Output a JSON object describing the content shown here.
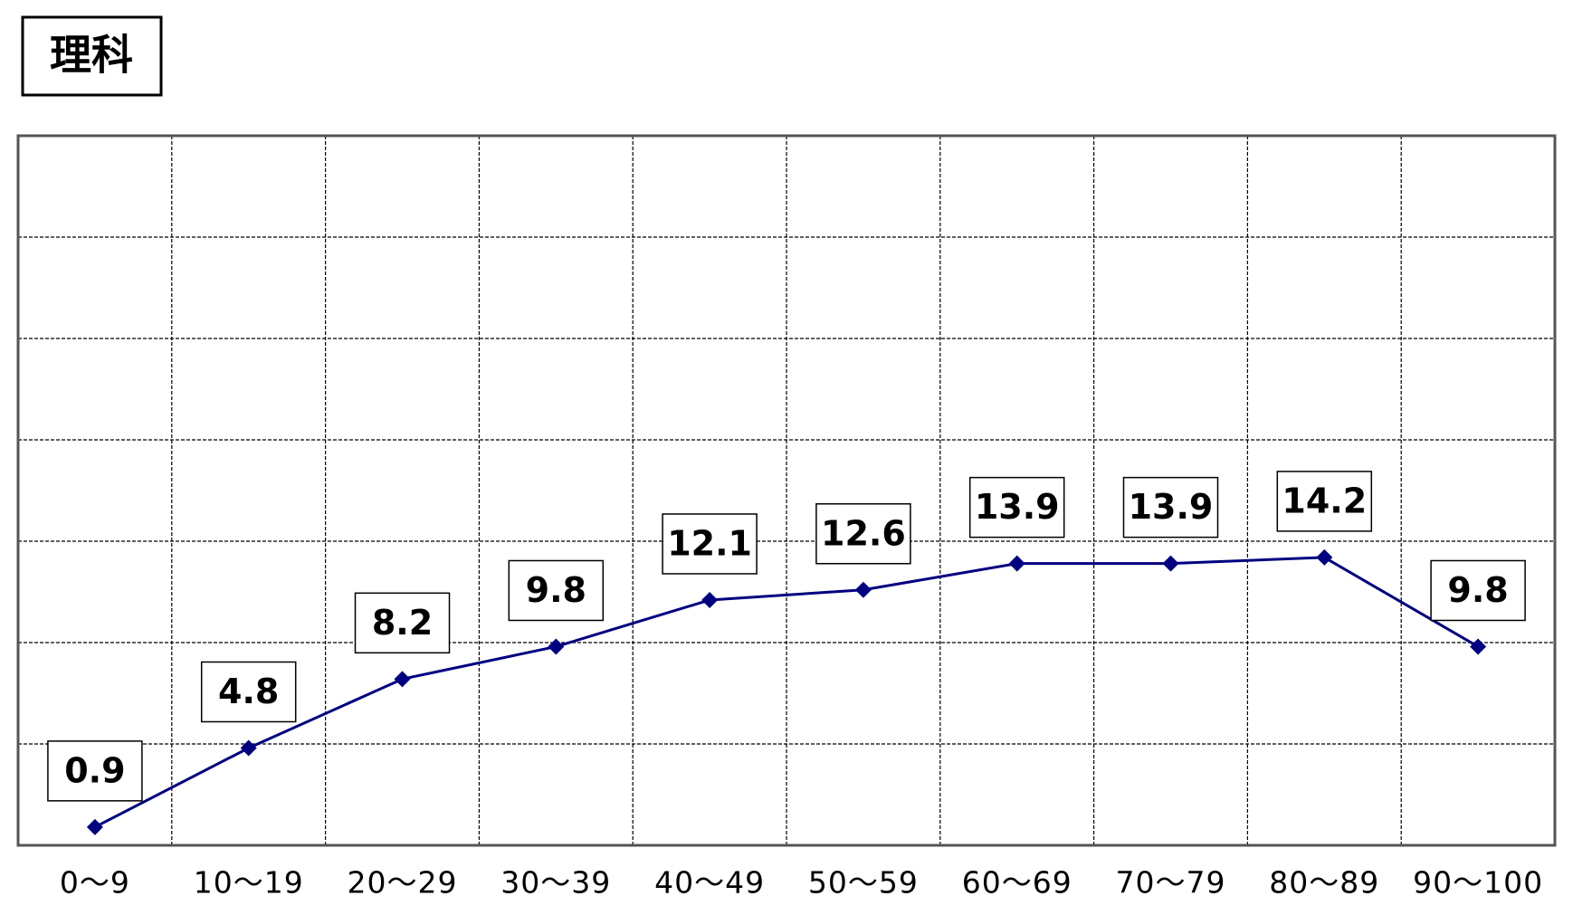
{
  "chart_data": {
    "type": "line",
    "title": "理科",
    "categories": [
      "0〜9",
      "10〜19",
      "20〜29",
      "30〜39",
      "40〜49",
      "50〜59",
      "60〜69",
      "70〜79",
      "80〜89",
      "90〜100"
    ],
    "values": [
      0.9,
      4.8,
      8.2,
      9.8,
      12.1,
      12.6,
      13.9,
      13.9,
      14.2,
      9.8
    ],
    "color": "#000080",
    "ylim": [
      0,
      35
    ],
    "yticks": [
      0,
      5,
      10,
      15,
      20,
      25,
      30,
      35
    ],
    "grid": true
  }
}
